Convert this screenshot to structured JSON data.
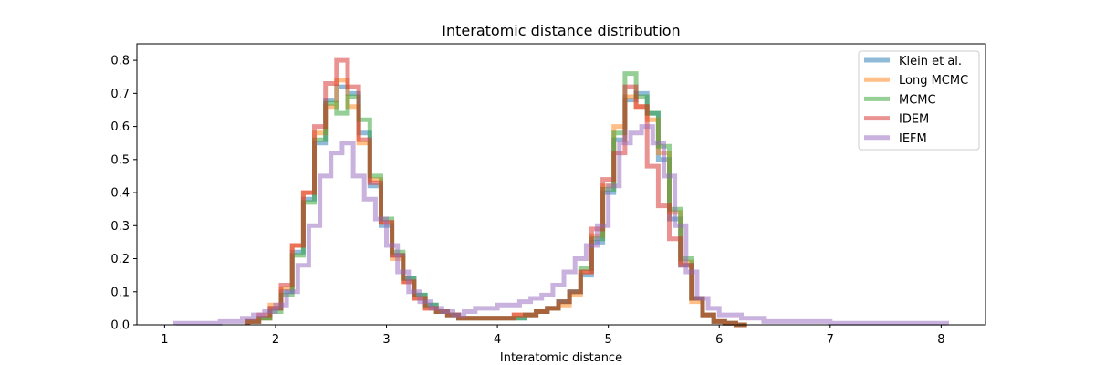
{
  "chart_data": {
    "type": "histogram",
    "title": "Interatomic distance distribution",
    "xlabel": "Interatomic distance",
    "ylabel": "",
    "xlim": [
      0.75,
      8.4
    ],
    "ylim": [
      0,
      0.85
    ],
    "x_ticks": [
      1,
      2,
      3,
      4,
      5,
      6,
      7,
      8
    ],
    "y_ticks": [
      0.0,
      0.1,
      0.2,
      0.3,
      0.4,
      0.5,
      0.6,
      0.7,
      0.8
    ],
    "grid": false,
    "legend_position": "top-right",
    "series": [
      {
        "name": "Klein et al.",
        "color": "#1f77b4",
        "edges": [
          1.75,
          1.85,
          1.95,
          2.05,
          2.15,
          2.25,
          2.35,
          2.45,
          2.55,
          2.65,
          2.75,
          2.85,
          2.95,
          3.05,
          3.15,
          3.25,
          3.35,
          3.45,
          3.55,
          3.65,
          3.75,
          3.85,
          3.95,
          4.05,
          4.15,
          4.25,
          4.35,
          4.45,
          4.55,
          4.65,
          4.75,
          4.85,
          4.95,
          5.05,
          5.15,
          5.25,
          5.35,
          5.45,
          5.55,
          5.65,
          5.75,
          5.85,
          5.95,
          6.05,
          6.15,
          6.25
        ],
        "values": [
          0.01,
          0.02,
          0.05,
          0.1,
          0.22,
          0.38,
          0.55,
          0.68,
          0.72,
          0.7,
          0.58,
          0.42,
          0.3,
          0.21,
          0.14,
          0.09,
          0.06,
          0.04,
          0.03,
          0.02,
          0.02,
          0.02,
          0.02,
          0.02,
          0.02,
          0.03,
          0.04,
          0.05,
          0.07,
          0.1,
          0.15,
          0.25,
          0.4,
          0.56,
          0.68,
          0.7,
          0.64,
          0.5,
          0.32,
          0.18,
          0.08,
          0.03,
          0.01,
          0.005,
          0.0
        ]
      },
      {
        "name": "Long MCMC",
        "color": "#ff7f0e",
        "edges": [
          1.75,
          1.85,
          1.95,
          2.05,
          2.15,
          2.25,
          2.35,
          2.45,
          2.55,
          2.65,
          2.75,
          2.85,
          2.95,
          3.05,
          3.15,
          3.25,
          3.35,
          3.45,
          3.55,
          3.65,
          3.75,
          3.85,
          3.95,
          4.05,
          4.15,
          4.25,
          4.35,
          4.45,
          4.55,
          4.65,
          4.75,
          4.85,
          4.95,
          5.05,
          5.15,
          5.25,
          5.35,
          5.45,
          5.55,
          5.65,
          5.75,
          5.85,
          5.95,
          6.05,
          6.15,
          6.25
        ],
        "values": [
          0.01,
          0.02,
          0.06,
          0.11,
          0.24,
          0.4,
          0.58,
          0.66,
          0.74,
          0.66,
          0.55,
          0.44,
          0.31,
          0.2,
          0.13,
          0.08,
          0.05,
          0.04,
          0.03,
          0.02,
          0.02,
          0.02,
          0.02,
          0.02,
          0.03,
          0.03,
          0.04,
          0.05,
          0.06,
          0.09,
          0.16,
          0.27,
          0.42,
          0.6,
          0.69,
          0.66,
          0.62,
          0.52,
          0.34,
          0.19,
          0.07,
          0.03,
          0.01,
          0.005,
          0.0
        ]
      },
      {
        "name": "MCMC",
        "color": "#2ca02c",
        "edges": [
          1.75,
          1.85,
          1.95,
          2.05,
          2.15,
          2.25,
          2.35,
          2.45,
          2.55,
          2.65,
          2.75,
          2.85,
          2.95,
          3.05,
          3.15,
          3.25,
          3.35,
          3.45,
          3.55,
          3.65,
          3.75,
          3.85,
          3.95,
          4.05,
          4.15,
          4.25,
          4.35,
          4.45,
          4.55,
          4.65,
          4.75,
          4.85,
          4.95,
          5.05,
          5.15,
          5.25,
          5.35,
          5.45,
          5.55,
          5.65,
          5.75,
          5.85,
          5.95,
          6.05,
          6.15,
          6.25
        ],
        "values": [
          0.01,
          0.02,
          0.04,
          0.09,
          0.21,
          0.37,
          0.56,
          0.67,
          0.64,
          0.69,
          0.62,
          0.45,
          0.32,
          0.22,
          0.14,
          0.09,
          0.06,
          0.04,
          0.03,
          0.02,
          0.02,
          0.02,
          0.02,
          0.02,
          0.02,
          0.03,
          0.04,
          0.05,
          0.07,
          0.1,
          0.17,
          0.26,
          0.41,
          0.58,
          0.76,
          0.69,
          0.64,
          0.54,
          0.35,
          0.2,
          0.08,
          0.03,
          0.01,
          0.005,
          0.0
        ]
      },
      {
        "name": "IDEM",
        "color": "#d62728",
        "edges": [
          1.75,
          1.85,
          1.95,
          2.05,
          2.15,
          2.25,
          2.35,
          2.45,
          2.55,
          2.65,
          2.75,
          2.85,
          2.95,
          3.05,
          3.15,
          3.25,
          3.35,
          3.45,
          3.55,
          3.65,
          3.75,
          3.85,
          3.95,
          4.05,
          4.15,
          4.25,
          4.35,
          4.45,
          4.55,
          4.65,
          4.75,
          4.85,
          4.95,
          5.05,
          5.15,
          5.25,
          5.35,
          5.45,
          5.55,
          5.65,
          5.75,
          5.85,
          5.95,
          6.05,
          6.15,
          6.25
        ],
        "values": [
          0.01,
          0.03,
          0.05,
          0.12,
          0.24,
          0.4,
          0.6,
          0.73,
          0.8,
          0.72,
          0.56,
          0.43,
          0.31,
          0.21,
          0.13,
          0.08,
          0.05,
          0.04,
          0.03,
          0.02,
          0.02,
          0.02,
          0.02,
          0.02,
          0.03,
          0.03,
          0.04,
          0.05,
          0.07,
          0.1,
          0.16,
          0.29,
          0.44,
          0.52,
          0.72,
          0.66,
          0.48,
          0.36,
          0.26,
          0.18,
          0.08,
          0.03,
          0.01,
          0.005,
          0.0
        ]
      },
      {
        "name": "IEFM",
        "color": "#9467bd",
        "edges": [
          1.1,
          1.3,
          1.5,
          1.7,
          1.8,
          1.9,
          2.0,
          2.1,
          2.2,
          2.3,
          2.4,
          2.5,
          2.6,
          2.7,
          2.8,
          2.9,
          3.0,
          3.1,
          3.2,
          3.3,
          3.4,
          3.5,
          3.6,
          3.7,
          3.8,
          3.9,
          4.0,
          4.1,
          4.2,
          4.3,
          4.4,
          4.5,
          4.6,
          4.7,
          4.8,
          4.9,
          5.0,
          5.1,
          5.2,
          5.3,
          5.4,
          5.5,
          5.6,
          5.7,
          5.8,
          5.9,
          6.0,
          6.2,
          6.4,
          6.6,
          6.8,
          7.0,
          7.3,
          7.6,
          8.05
        ],
        "values": [
          0.005,
          0.005,
          0.01,
          0.02,
          0.03,
          0.04,
          0.06,
          0.1,
          0.18,
          0.3,
          0.45,
          0.52,
          0.55,
          0.45,
          0.38,
          0.32,
          0.24,
          0.16,
          0.1,
          0.07,
          0.05,
          0.04,
          0.03,
          0.04,
          0.05,
          0.05,
          0.06,
          0.06,
          0.07,
          0.08,
          0.09,
          0.12,
          0.16,
          0.2,
          0.24,
          0.3,
          0.42,
          0.55,
          0.58,
          0.6,
          0.55,
          0.45,
          0.3,
          0.16,
          0.08,
          0.05,
          0.03,
          0.02,
          0.01,
          0.01,
          0.01,
          0.005,
          0.005,
          0.005
        ]
      }
    ]
  }
}
